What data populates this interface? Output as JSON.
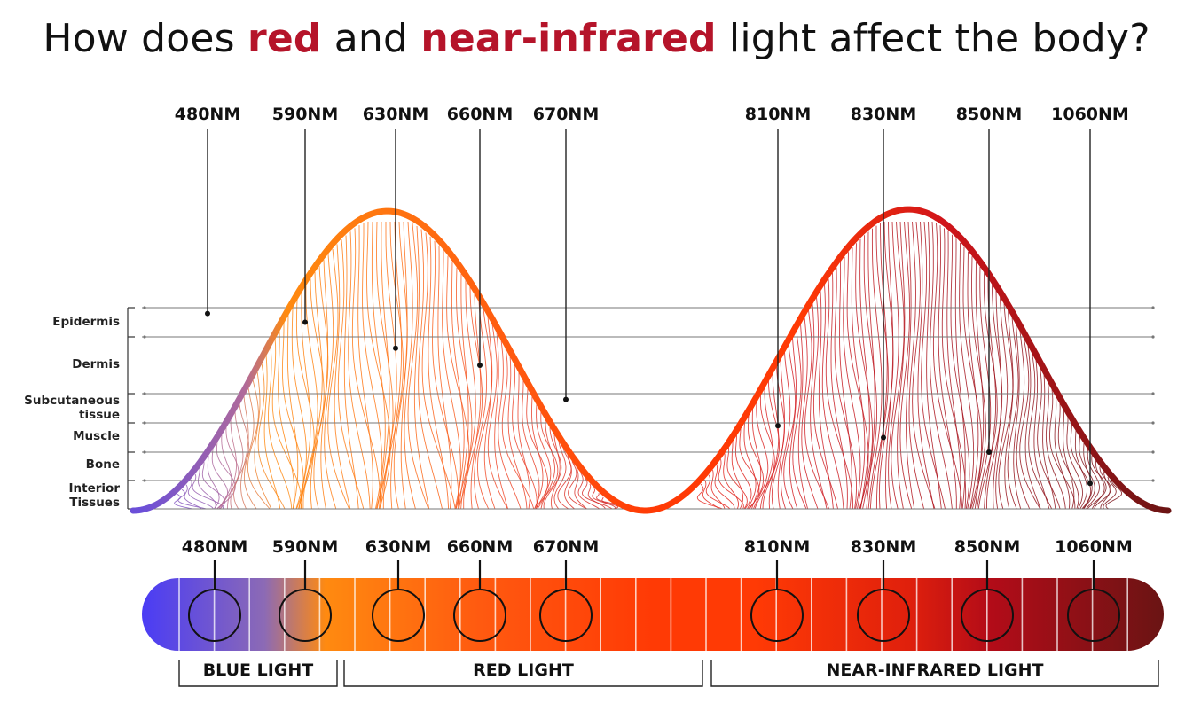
{
  "title": {
    "part1": "How does ",
    "highlight1": "red",
    "part2": " and ",
    "highlight2": "near-infrared",
    "part3": " light affect the body?",
    "highlight_color": "#b5142a"
  },
  "wavelengths": [
    {
      "label": "480NM",
      "depth_layer": 0.2,
      "color": "#7e5fd0"
    },
    {
      "label": "590NM",
      "depth_layer": 0.5,
      "color": "#ff8a10"
    },
    {
      "label": "630NM",
      "depth_layer": 1.2,
      "color": "#ff5a10"
    },
    {
      "label": "660NM",
      "depth_layer": 1.5,
      "color": "#ff4a10"
    },
    {
      "label": "670NM",
      "depth_layer": 2.2,
      "color": "#ff3a0a"
    },
    {
      "label": "810NM",
      "depth_layer": 3.1,
      "color": "#e8280e"
    },
    {
      "label": "830NM",
      "depth_layer": 3.5,
      "color": "#cc1514"
    },
    {
      "label": "850NM",
      "depth_layer": 4.0,
      "color": "#a80c18"
    },
    {
      "label": "1060NM",
      "depth_layer": 5.1,
      "color": "#7a1214"
    }
  ],
  "layers": [
    {
      "label": "Epidermis"
    },
    {
      "label": "Dermis"
    },
    {
      "label": "Subcutaneous tissue",
      "line1": "Subcutaneous",
      "line2": "tissue"
    },
    {
      "label": "Muscle"
    },
    {
      "label": "Bone"
    },
    {
      "label": "Interior Tissues",
      "line1": "Interior",
      "line2": "Tissues"
    }
  ],
  "categories": [
    {
      "label": "BLUE LIGHT"
    },
    {
      "label": "RED LIGHT"
    },
    {
      "label": "NEAR-INFRARED LIGHT"
    }
  ],
  "colors": {
    "blue": "#4a3cf5",
    "orange": "#ff8a10",
    "red": "#ff3a05",
    "dark_red": "#6a1414"
  }
}
